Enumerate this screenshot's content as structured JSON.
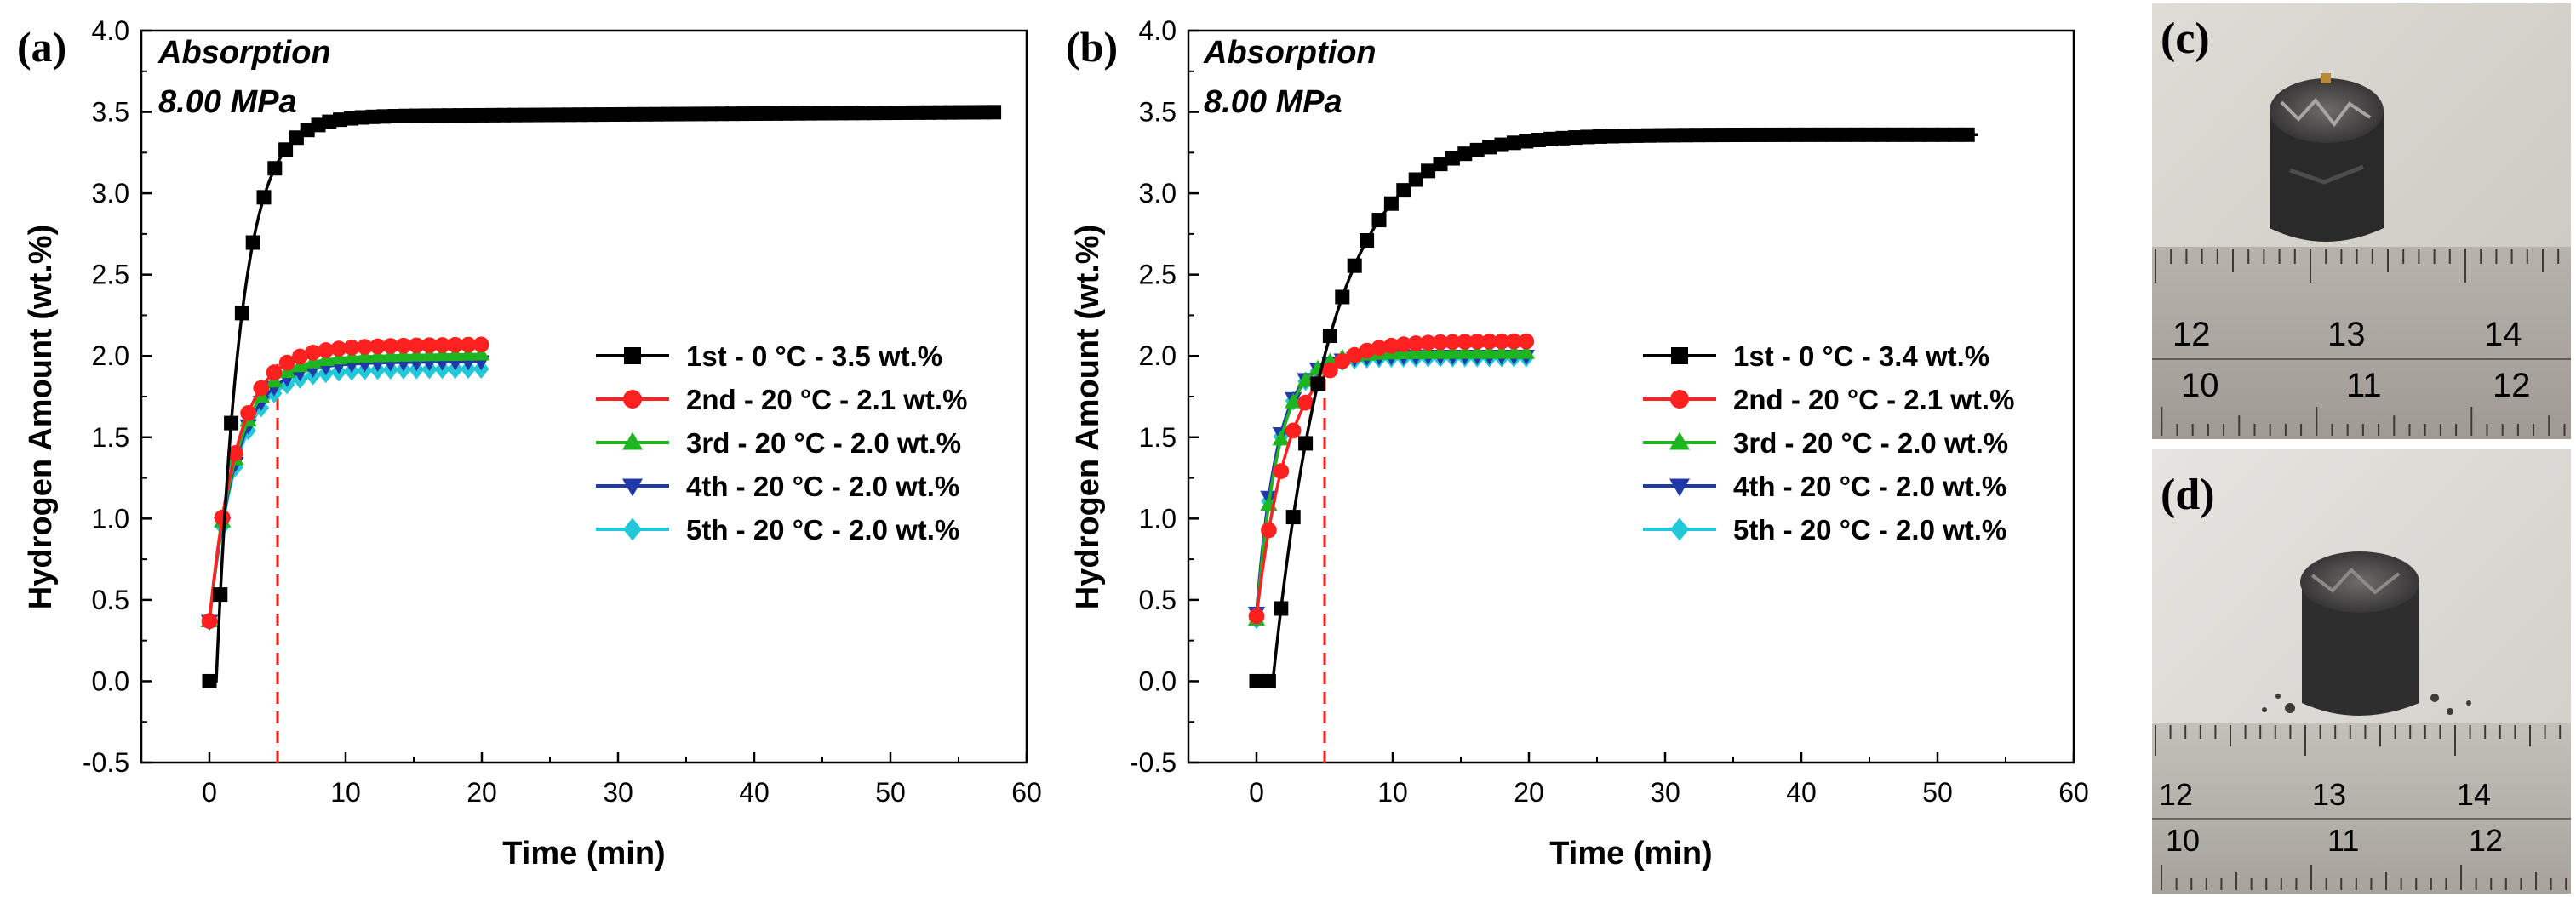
{
  "figure": {
    "panel_c_label": "(c)",
    "panel_d_label": "(d)"
  },
  "chart_data": [
    {
      "type": "line",
      "panel_label": "(a)",
      "annotation_title": "Absorption",
      "annotation_pressure": "8.00 MPa",
      "xlabel": "Time (min)",
      "ylabel": "Hydrogen Amount (wt.%)",
      "xlim": [
        -5,
        60
      ],
      "ylim": [
        -0.5,
        4.0
      ],
      "xticks": [
        0,
        10,
        20,
        30,
        40,
        50,
        60
      ],
      "yticks": [
        -0.5,
        0.0,
        0.5,
        1.0,
        1.5,
        2.0,
        2.5,
        3.0,
        3.5,
        4.0
      ],
      "ytick_labels": [
        "-0.5",
        "0.0",
        "0.5",
        "1.0",
        "1.5",
        "2.0",
        "2.5",
        "3.0",
        "3.5",
        "4.0"
      ],
      "vline_x": 5,
      "legend_position": "center-right",
      "series": [
        {
          "name": "1st - 0 °C - 3.5 wt.%",
          "marker": "square",
          "color": "#000000",
          "delay": 0.5,
          "onset": 0.5,
          "tau": 1.8,
          "plateau": 3.47,
          "start": 0.0,
          "x_end": 58,
          "t_marker_gap": 0.8,
          "drift": 0.0005
        },
        {
          "name": "2nd - 20 °C - 2.1 wt.%",
          "marker": "circle",
          "color": "#ff2020",
          "delay": 0,
          "onset": 0,
          "tau": 2.0,
          "plateau": 2.05,
          "start": 0.37,
          "x_end": 20,
          "t_marker_gap": 0.95,
          "drift": 0.001
        },
        {
          "name": "3rd - 20 °C - 2.0 wt.%",
          "marker": "triangle-up",
          "color": "#1fb51f",
          "delay": 0,
          "onset": 0,
          "tau": 2.0,
          "plateau": 1.99,
          "start": 0.37,
          "x_end": 20,
          "t_marker_gap": 0.95,
          "drift": 0.001
        },
        {
          "name": "4th - 20 °C - 2.0 wt.%",
          "marker": "triangle-down",
          "color": "#1f3aa8",
          "delay": 0,
          "onset": 0,
          "tau": 2.0,
          "plateau": 1.95,
          "start": 0.37,
          "x_end": 20,
          "t_marker_gap": 0.95,
          "drift": 0.0008
        },
        {
          "name": "5th - 20 °C - 2.0 wt.%",
          "marker": "diamond",
          "color": "#22c8d8",
          "delay": 0,
          "onset": 0,
          "tau": 2.0,
          "plateau": 1.91,
          "start": 0.37,
          "x_end": 20,
          "t_marker_gap": 0.95,
          "drift": 0.0005
        }
      ]
    },
    {
      "type": "line",
      "panel_label": "(b)",
      "annotation_title": "Absorption",
      "annotation_pressure": "8.00 MPa",
      "xlabel": "Time (min)",
      "ylabel": "Hydrogen Amount (wt.%)",
      "xlim": [
        -5,
        60
      ],
      "ylim": [
        -0.5,
        4.0
      ],
      "xticks": [
        0,
        10,
        20,
        30,
        40,
        50,
        60
      ],
      "yticks": [
        -0.5,
        0.0,
        0.5,
        1.0,
        1.5,
        2.0,
        2.5,
        3.0,
        3.5,
        4.0
      ],
      "ytick_labels": [
        "-0.5",
        "0.0",
        "0.5",
        "1.0",
        "1.5",
        "2.0",
        "2.5",
        "3.0",
        "3.5",
        "4.0"
      ],
      "vline_x": 5,
      "legend_position": "center-right",
      "series": [
        {
          "name": "1st - 0 °C - 3.4 wt.%",
          "marker": "square",
          "color": "#000000",
          "delay": 1.2,
          "onset": 1.2,
          "tau": 4.2,
          "plateau": 3.36,
          "start": 0.0,
          "x_end": 53,
          "t_marker_gap": 0.9,
          "drift": 0.0
        },
        {
          "name": "2nd - 20 °C - 2.1 wt.%",
          "marker": "circle",
          "color": "#ff2020",
          "delay": 0,
          "onset": 0,
          "tau": 2.4,
          "plateau": 2.09,
          "start": 0.4,
          "x_end": 20,
          "t_marker_gap": 0.9,
          "drift": 0.0
        },
        {
          "name": "3rd - 20 °C - 2.0 wt.%",
          "marker": "triangle-up",
          "color": "#1fb51f",
          "delay": 0,
          "onset": 0,
          "tau": 1.6,
          "plateau": 2.02,
          "start": 0.38,
          "x_end": 20,
          "t_marker_gap": 0.9,
          "drift": 0.0
        },
        {
          "name": "4th - 20 °C - 2.0 wt.%",
          "marker": "triangle-down",
          "color": "#1f3aa8",
          "delay": 0,
          "onset": 0,
          "tau": 1.5,
          "plateau": 2.0,
          "start": 0.42,
          "x_end": 20,
          "t_marker_gap": 0.9,
          "drift": 0.0
        },
        {
          "name": "5th - 20 °C - 2.0 wt.%",
          "marker": "diamond",
          "color": "#22c8d8",
          "delay": 0,
          "onset": 0,
          "tau": 1.5,
          "plateau": 1.99,
          "start": 0.38,
          "x_end": 20,
          "t_marker_gap": 0.9,
          "drift": 0.0
        }
      ]
    }
  ]
}
